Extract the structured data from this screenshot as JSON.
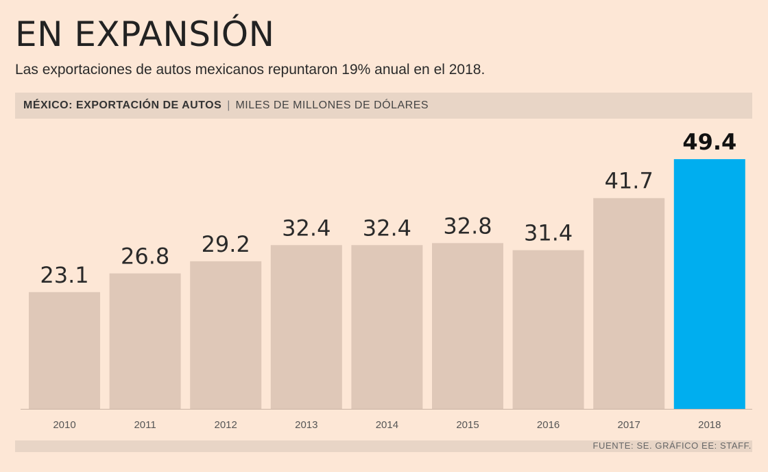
{
  "header": {
    "title": "EN EXPANSIÓN",
    "subtitle": "Las exportaciones de autos mexicanos repuntaron 19% anual en el 2018."
  },
  "chart_header": {
    "title": "MÉXICO: EXPORTACIÓN DE AUTOS",
    "separator": "|",
    "units": "MILES DE MILLONES DE DÓLARES"
  },
  "footer": {
    "source": "FUENTE: SE. GRÁFICO EE: STAFF."
  },
  "colors": {
    "background": "#fde7d6",
    "bar": "#dfc8b8",
    "highlight": "#00aeef"
  },
  "chart_data": {
    "type": "bar",
    "categories": [
      "2010",
      "2011",
      "2012",
      "2013",
      "2014",
      "2015",
      "2016",
      "2017",
      "2018"
    ],
    "values": [
      23.1,
      26.8,
      29.2,
      32.4,
      32.4,
      32.8,
      31.4,
      41.7,
      49.4
    ],
    "value_labels": [
      "23.1",
      "26.8",
      "29.2",
      "32.4",
      "32.4",
      "32.8",
      "31.4",
      "41.7",
      "49.4"
    ],
    "highlight": "2018",
    "title": "MÉXICO: EXPORTACIÓN DE AUTOS",
    "ylabel": "MILES DE MILLONES DE DÓLARES",
    "xlabel": "",
    "ylim": [
      0,
      49.4
    ],
    "grid": false,
    "legend": "none"
  }
}
